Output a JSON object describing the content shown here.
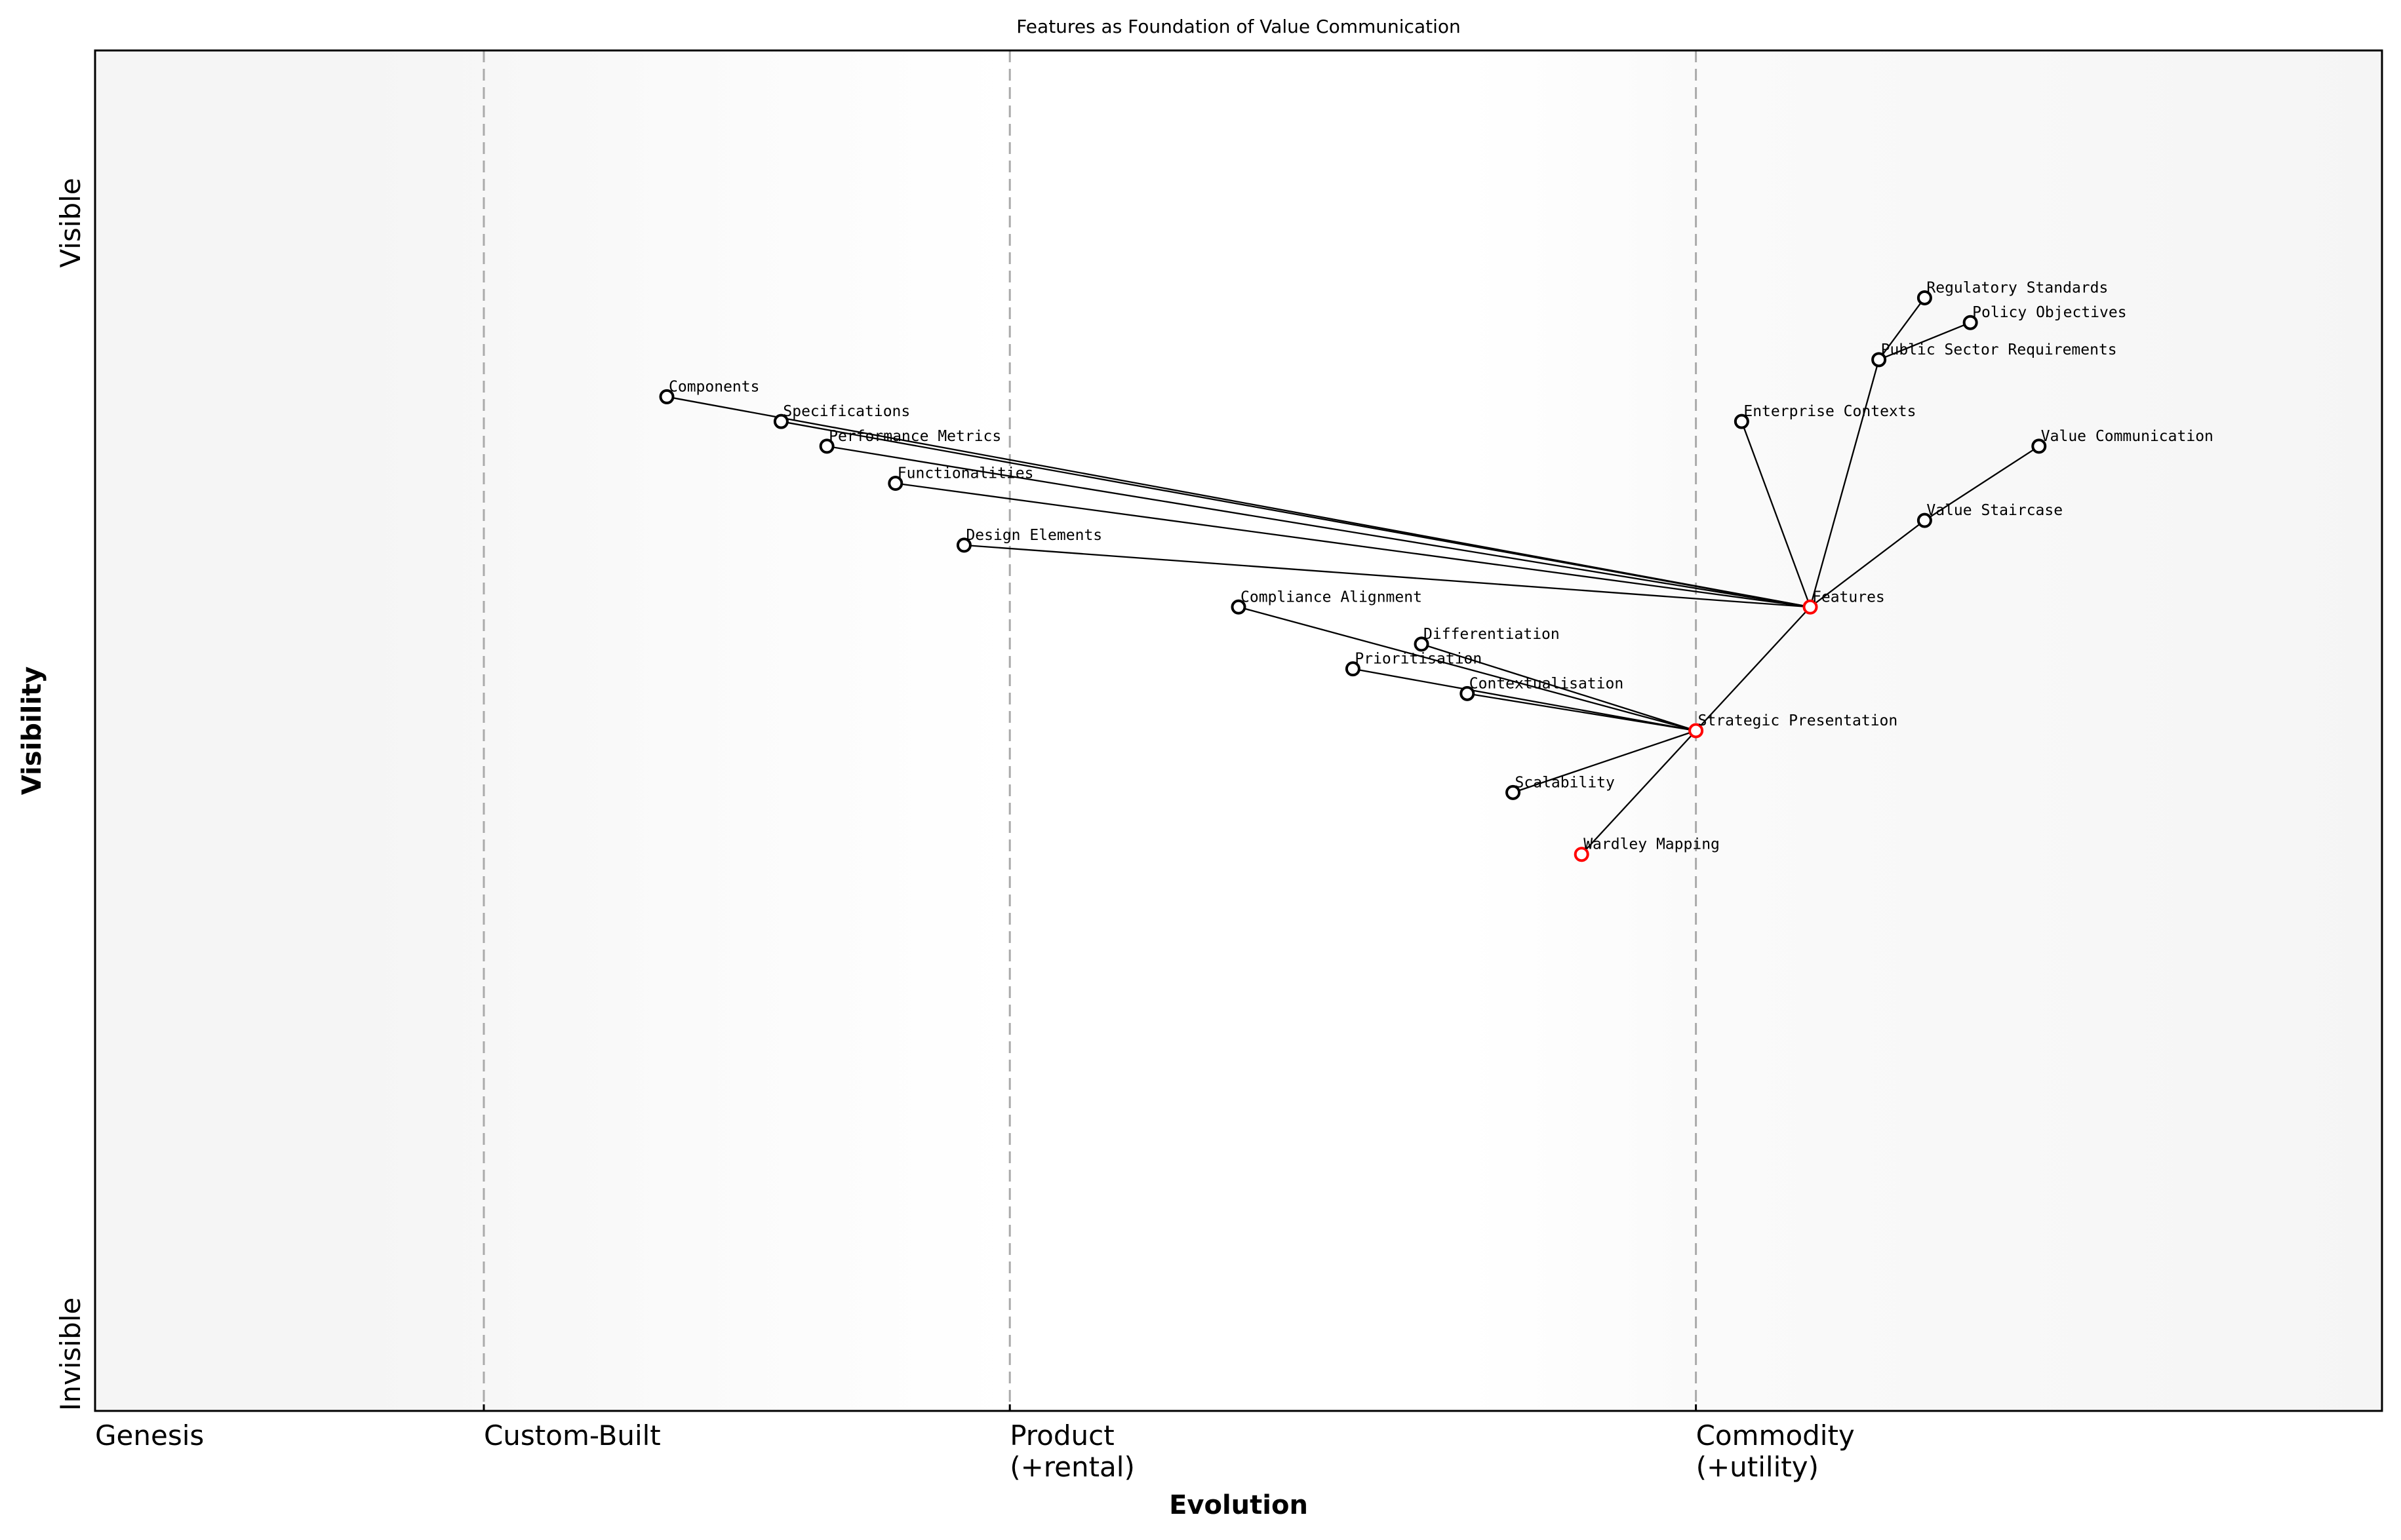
{
  "chart_data": {
    "type": "scatter",
    "title": "Features as Foundation of Value Communication",
    "xlabel": "Evolution",
    "ylabel": "Visibility",
    "xlim": [
      0,
      1
    ],
    "ylim": [
      0,
      1.1
    ],
    "grid": false,
    "x_stage_ticks": [
      {
        "x": 0,
        "label": "Genesis",
        "divider": false
      },
      {
        "x": 0.17,
        "label": "Custom-Built",
        "divider": true
      },
      {
        "x": 0.4,
        "label": "Product\n(+rental)",
        "divider": true
      },
      {
        "x": 0.7,
        "label": "Commodity\n(+utility)",
        "divider": true
      }
    ],
    "y_labels": {
      "top": "Visible",
      "bottom": "Invisible"
    },
    "colors": {
      "node": "#000000",
      "highlight": "#ff0000",
      "divider": "#aaaaaa",
      "band": "#f5f5f5"
    },
    "nodes": [
      {
        "name": "Value Communication",
        "x": 0.85,
        "y": 0.78,
        "highlight": false
      },
      {
        "name": "Value Staircase",
        "x": 0.8,
        "y": 0.72,
        "highlight": false
      },
      {
        "name": "Features",
        "x": 0.75,
        "y": 0.65,
        "highlight": true
      },
      {
        "name": "Strategic Presentation",
        "x": 0.7,
        "y": 0.55,
        "highlight": true
      },
      {
        "name": "Wardley Mapping",
        "x": 0.65,
        "y": 0.45,
        "highlight": true
      },
      {
        "name": "Components",
        "x": 0.25,
        "y": 0.82,
        "highlight": false
      },
      {
        "name": "Specifications",
        "x": 0.3,
        "y": 0.8,
        "highlight": false
      },
      {
        "name": "Performance Metrics",
        "x": 0.32,
        "y": 0.78,
        "highlight": false
      },
      {
        "name": "Functionalities",
        "x": 0.35,
        "y": 0.75,
        "highlight": false
      },
      {
        "name": "Design Elements",
        "x": 0.38,
        "y": 0.7,
        "highlight": false
      },
      {
        "name": "Enterprise Contexts",
        "x": 0.72,
        "y": 0.8,
        "highlight": false
      },
      {
        "name": "Public Sector Requirements",
        "x": 0.78,
        "y": 0.85,
        "highlight": false
      },
      {
        "name": "Regulatory Standards",
        "x": 0.8,
        "y": 0.9,
        "highlight": false
      },
      {
        "name": "Policy Objectives",
        "x": 0.82,
        "y": 0.88,
        "highlight": false
      },
      {
        "name": "Compliance Alignment",
        "x": 0.5,
        "y": 0.65,
        "highlight": false
      },
      {
        "name": "Differentiation",
        "x": 0.58,
        "y": 0.62,
        "highlight": false
      },
      {
        "name": "Prioritisation",
        "x": 0.55,
        "y": 0.6,
        "highlight": false
      },
      {
        "name": "Contextualisation",
        "x": 0.6,
        "y": 0.58,
        "highlight": false
      },
      {
        "name": "Scalability",
        "x": 0.62,
        "y": 0.5,
        "highlight": false
      }
    ],
    "edges": [
      [
        "Value Communication",
        "Value Staircase"
      ],
      [
        "Value Staircase",
        "Features"
      ],
      [
        "Features",
        "Strategic Presentation"
      ],
      [
        "Strategic Presentation",
        "Wardley Mapping"
      ],
      [
        "Features",
        "Components"
      ],
      [
        "Features",
        "Specifications"
      ],
      [
        "Features",
        "Performance Metrics"
      ],
      [
        "Features",
        "Functionalities"
      ],
      [
        "Features",
        "Design Elements"
      ],
      [
        "Features",
        "Enterprise Contexts"
      ],
      [
        "Features",
        "Public Sector Requirements"
      ],
      [
        "Public Sector Requirements",
        "Regulatory Standards"
      ],
      [
        "Public Sector Requirements",
        "Policy Objectives"
      ],
      [
        "Strategic Presentation",
        "Compliance Alignment"
      ],
      [
        "Strategic Presentation",
        "Differentiation"
      ],
      [
        "Strategic Presentation",
        "Prioritisation"
      ],
      [
        "Strategic Presentation",
        "Contextualisation"
      ],
      [
        "Strategic Presentation",
        "Scalability"
      ]
    ]
  }
}
